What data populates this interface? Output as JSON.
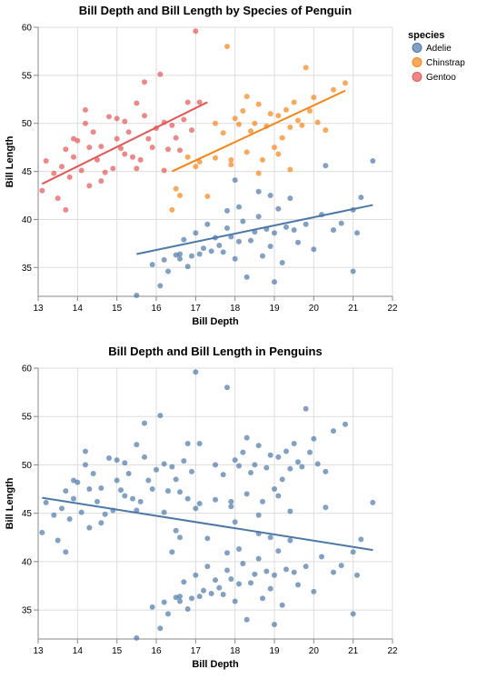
{
  "colors": {
    "Adelie": "#4c78a8",
    "Chinstrap": "#f58518",
    "Gentoo": "#e45756"
  },
  "legend": {
    "title": "species",
    "items": [
      "Adelie",
      "Chinstrap",
      "Gentoo"
    ]
  },
  "chart_data": [
    {
      "type": "scatter",
      "title": "Bill Depth and Bill Length by Species of Penguin",
      "xlabel": "Bill Depth",
      "ylabel": "Bill Length",
      "xlim": [
        13,
        22
      ],
      "ylim": [
        32,
        60
      ],
      "xticks": [
        13,
        14,
        15,
        16,
        17,
        18,
        19,
        20,
        21,
        22
      ],
      "yticks": [
        35,
        40,
        45,
        50,
        55,
        60
      ],
      "grid": true,
      "legend_position": "top-right",
      "series": [
        {
          "name": "Adelie",
          "points": [
            [
              15.5,
              32.1
            ],
            [
              15.9,
              35.3
            ],
            [
              16.1,
              33.1
            ],
            [
              16.2,
              35.8
            ],
            [
              16.3,
              34.6
            ],
            [
              16.5,
              36.3
            ],
            [
              16.6,
              35.9
            ],
            [
              16.7,
              37.9
            ],
            [
              16.8,
              35.1
            ],
            [
              16.9,
              36.2
            ],
            [
              17.0,
              38.6
            ],
            [
              17.1,
              36.4
            ],
            [
              17.2,
              37.0
            ],
            [
              17.3,
              39.5
            ],
            [
              17.4,
              36.7
            ],
            [
              17.5,
              38.1
            ],
            [
              17.6,
              37.3
            ],
            [
              17.7,
              36.6
            ],
            [
              17.8,
              39.1
            ],
            [
              17.9,
              38.2
            ],
            [
              18.0,
              35.9
            ],
            [
              18.1,
              37.7
            ],
            [
              18.2,
              39.8
            ],
            [
              18.3,
              34.0
            ],
            [
              18.4,
              37.8
            ],
            [
              18.5,
              38.7
            ],
            [
              18.6,
              40.3
            ],
            [
              18.7,
              36.2
            ],
            [
              18.8,
              39.0
            ],
            [
              18.9,
              37.2
            ],
            [
              19.0,
              38.6
            ],
            [
              19.1,
              41.1
            ],
            [
              19.2,
              35.5
            ],
            [
              19.3,
              39.2
            ],
            [
              19.4,
              42.2
            ],
            [
              19.5,
              38.9
            ],
            [
              19.6,
              37.6
            ],
            [
              19.8,
              39.5
            ],
            [
              20.0,
              36.9
            ],
            [
              20.2,
              40.5
            ],
            [
              20.5,
              38.9
            ],
            [
              20.7,
              39.6
            ],
            [
              21.0,
              41.0
            ],
            [
              21.1,
              38.6
            ],
            [
              21.2,
              42.3
            ],
            [
              21.5,
              46.1
            ],
            [
              18.0,
              44.1
            ],
            [
              18.9,
              42.5
            ],
            [
              20.3,
              45.6
            ],
            [
              21.0,
              34.6
            ],
            [
              17.8,
              40.9
            ],
            [
              16.6,
              36.4
            ],
            [
              18.1,
              41.3
            ],
            [
              18.6,
              42.9
            ],
            [
              19.0,
              33.5
            ]
          ],
          "trend": [
            [
              15.5,
              36.4
            ],
            [
              21.5,
              41.5
            ]
          ]
        },
        {
          "name": "Chinstrap",
          "points": [
            [
              16.4,
              41.0
            ],
            [
              16.5,
              43.2
            ],
            [
              16.6,
              42.5
            ],
            [
              16.8,
              46.5
            ],
            [
              17.0,
              45.5
            ],
            [
              17.1,
              46.0
            ],
            [
              17.3,
              42.4
            ],
            [
              17.5,
              46.4
            ],
            [
              17.7,
              49.0
            ],
            [
              17.8,
              58.0
            ],
            [
              17.9,
              45.7
            ],
            [
              18.0,
              50.5
            ],
            [
              18.1,
              49.9
            ],
            [
              18.2,
              51.3
            ],
            [
              18.3,
              47.0
            ],
            [
              18.4,
              49.2
            ],
            [
              18.5,
              50.0
            ],
            [
              18.6,
              52.0
            ],
            [
              18.7,
              46.2
            ],
            [
              18.8,
              49.7
            ],
            [
              18.9,
              51.0
            ],
            [
              19.0,
              47.5
            ],
            [
              19.1,
              50.8
            ],
            [
              19.2,
              48.5
            ],
            [
              19.3,
              51.4
            ],
            [
              19.4,
              45.2
            ],
            [
              19.5,
              52.2
            ],
            [
              19.6,
              50.3
            ],
            [
              19.7,
              49.8
            ],
            [
              19.8,
              55.8
            ],
            [
              19.9,
              51.3
            ],
            [
              20.0,
              52.7
            ],
            [
              20.1,
              50.1
            ],
            [
              20.3,
              49.3
            ],
            [
              20.5,
              53.5
            ],
            [
              20.8,
              54.2
            ],
            [
              19.1,
              46.8
            ],
            [
              18.6,
              44.8
            ],
            [
              17.9,
              46.2
            ],
            [
              17.5,
              50.0
            ],
            [
              18.3,
              52.8
            ],
            [
              19.4,
              49.6
            ]
          ],
          "trend": [
            [
              16.4,
              45.0
            ],
            [
              20.8,
              53.4
            ]
          ]
        },
        {
          "name": "Gentoo",
          "points": [
            [
              13.1,
              43.0
            ],
            [
              13.2,
              46.1
            ],
            [
              13.4,
              44.8
            ],
            [
              13.5,
              42.2
            ],
            [
              13.6,
              45.5
            ],
            [
              13.7,
              47.3
            ],
            [
              13.8,
              44.4
            ],
            [
              13.9,
              46.5
            ],
            [
              14.0,
              48.2
            ],
            [
              14.1,
              45.1
            ],
            [
              14.2,
              50.0
            ],
            [
              14.3,
              43.5
            ],
            [
              14.4,
              49.1
            ],
            [
              14.5,
              46.2
            ],
            [
              14.6,
              47.6
            ],
            [
              14.7,
              44.9
            ],
            [
              14.8,
              50.7
            ],
            [
              14.9,
              45.3
            ],
            [
              15.0,
              48.4
            ],
            [
              15.1,
              47.4
            ],
            [
              15.2,
              50.2
            ],
            [
              15.3,
              49.1
            ],
            [
              15.4,
              46.5
            ],
            [
              15.5,
              52.1
            ],
            [
              15.6,
              46.2
            ],
            [
              15.7,
              50.8
            ],
            [
              15.8,
              48.4
            ],
            [
              15.9,
              47.5
            ],
            [
              16.0,
              49.5
            ],
            [
              16.1,
              55.1
            ],
            [
              16.2,
              50.1
            ],
            [
              16.3,
              47.3
            ],
            [
              16.4,
              49.8
            ],
            [
              16.5,
              48.5
            ],
            [
              16.6,
              47.2
            ],
            [
              16.7,
              50.4
            ],
            [
              16.8,
              52.2
            ],
            [
              16.9,
              49.3
            ],
            [
              17.0,
              59.6
            ],
            [
              17.1,
              52.2
            ],
            [
              14.2,
              51.4
            ],
            [
              15.7,
              54.3
            ],
            [
              13.7,
              41.0
            ],
            [
              14.6,
              44.0
            ],
            [
              15.2,
              46.8
            ],
            [
              16.2,
              45.1
            ],
            [
              13.9,
              48.4
            ],
            [
              15.0,
              50.5
            ],
            [
              14.3,
              47.5
            ],
            [
              15.5,
              45.3
            ]
          ],
          "trend": [
            [
              13.1,
              43.7
            ],
            [
              17.3,
              52.2
            ]
          ]
        }
      ]
    },
    {
      "type": "scatter",
      "title": "Bill Depth and Bill Length in Penguins",
      "xlabel": "Bill Depth",
      "ylabel": "Bill Length",
      "xlim": [
        13,
        22
      ],
      "ylim": [
        32,
        60
      ],
      "xticks": [
        13,
        14,
        15,
        16,
        17,
        18,
        19,
        20,
        21,
        22
      ],
      "yticks": [
        35,
        40,
        45,
        50,
        55,
        60
      ],
      "grid": true,
      "single_color": "#4c78a8",
      "trend": [
        [
          13.1,
          46.6
        ],
        [
          21.5,
          41.2
        ]
      ]
    }
  ]
}
